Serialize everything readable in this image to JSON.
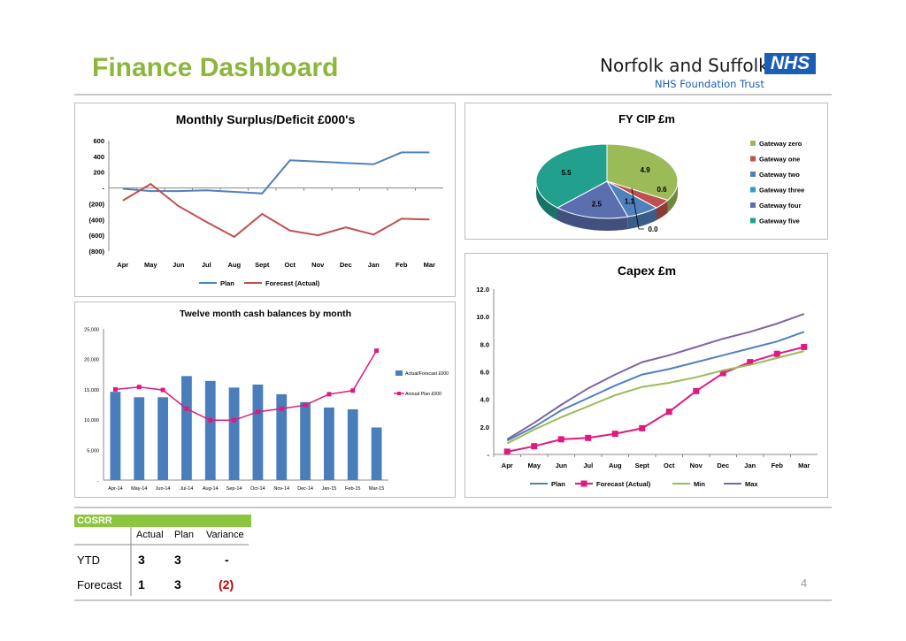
{
  "header": {
    "title": "Finance Dashboard",
    "logo_name": "Norfolk and Suffolk",
    "logo_box": "NHS",
    "logo_sub": "NHS Foundation Trust"
  },
  "colors": {
    "title_green": "#8cb63c",
    "nhs_blue": "#1b5eb8",
    "plan_blue": "#4f81bd",
    "forecast_red": "#c0504d",
    "min_green": "#9bbb59",
    "max_purple": "#8064a2",
    "pink": "#e0197e",
    "cosrr_green": "#8cc63f",
    "variance_red": "#c00000"
  },
  "cosrr": {
    "title": "COSRR",
    "columns": [
      "Actual",
      "Plan",
      "Variance"
    ],
    "rows": [
      {
        "label": "YTD",
        "actual": "3",
        "plan": "3",
        "variance": "-"
      },
      {
        "label": "Forecast",
        "actual": "1",
        "plan": "3",
        "variance": "(2)"
      }
    ]
  },
  "page_number": "4",
  "chart_data": [
    {
      "id": "surplus",
      "type": "line",
      "title": "Monthly Surplus/Deficit £000's",
      "categories": [
        "Apr",
        "May",
        "Jun",
        "Jul",
        "Aug",
        "Sept",
        "Oct",
        "Nov",
        "Dec",
        "Jan",
        "Feb",
        "Mar"
      ],
      "series": [
        {
          "name": "Plan",
          "color": "#4f81bd",
          "values": [
            -10,
            -40,
            -40,
            -30,
            -50,
            -70,
            350,
            335,
            315,
            300,
            450,
            450
          ]
        },
        {
          "name": "Forecast (Actual)",
          "color": "#c0504d",
          "values": [
            -160,
            50,
            -230,
            -430,
            -620,
            -330,
            -540,
            -600,
            -500,
            -590,
            -390,
            -400
          ]
        }
      ],
      "yticks": [
        600,
        400,
        200,
        0,
        -200,
        -400,
        -600,
        -800
      ],
      "ytick_labels": [
        "600",
        "400",
        "200",
        "-",
        "(200)",
        "(400)",
        "(600)",
        "(800)"
      ],
      "ylim": [
        -800,
        600
      ],
      "legend": "bottom"
    },
    {
      "id": "cip",
      "type": "pie",
      "title": "FY CIP £m",
      "slices": [
        {
          "name": "Gateway zero",
          "value": 4.9,
          "label": "4.9",
          "color": "#9bbb59"
        },
        {
          "name": "Gateway one",
          "value": 0.6,
          "label": "0.6",
          "color": "#c0504d"
        },
        {
          "name": "Gateway two",
          "value": 1.1,
          "label": "1.1",
          "color": "#4f81bd"
        },
        {
          "name": "Gateway three",
          "value": 0.0,
          "label": "0.0",
          "color": "#2ea0c6"
        },
        {
          "name": "Gateway four",
          "value": 2.5,
          "label": "2.5",
          "color": "#5b6fb0"
        },
        {
          "name": "Gateway five",
          "value": 5.5,
          "label": "5.5",
          "color": "#21a08e"
        }
      ],
      "legend": "right"
    },
    {
      "id": "cash",
      "type": "bar",
      "title": "Twelve month cash balances by month",
      "categories": [
        "Apr-14",
        "May-14",
        "Jun-14",
        "Jul-14",
        "Aug-14",
        "Sep-14",
        "Oct-14",
        "Nov-14",
        "Dec-14",
        "Jan-15",
        "Feb-15",
        "Mar-15"
      ],
      "series": [
        {
          "name": "Actual/Forecast £000",
          "kind": "bar",
          "color": "#4a7ebb",
          "values": [
            14600,
            13700,
            13700,
            17200,
            16400,
            15300,
            15800,
            14200,
            12900,
            12000,
            11700,
            8700
          ]
        },
        {
          "name": "Annual Plan £000",
          "kind": "line",
          "color": "#e0197e",
          "values": [
            15000,
            15400,
            14900,
            11800,
            9900,
            9900,
            11300,
            11800,
            12400,
            14200,
            14800,
            21400
          ]
        }
      ],
      "yticks": [
        25000,
        20000,
        15000,
        10000,
        5000,
        0
      ],
      "ytick_labels": [
        "25,000",
        "20,000",
        "15,000",
        "10,000",
        "5,000",
        "-"
      ],
      "ylim": [
        0,
        25000
      ],
      "legend": "right"
    },
    {
      "id": "capex",
      "type": "line",
      "title": "Capex £m",
      "categories": [
        "Apr",
        "May",
        "Jun",
        "Jul",
        "Aug",
        "Sept",
        "Oct",
        "Nov",
        "Dec",
        "Jan",
        "Feb",
        "Mar"
      ],
      "series": [
        {
          "name": "Plan",
          "color": "#4f81bd",
          "values": [
            1.0,
            2.0,
            3.2,
            4.1,
            5.0,
            5.8,
            6.2,
            6.7,
            7.2,
            7.7,
            8.2,
            8.9
          ]
        },
        {
          "name": "Forecast (Actual)",
          "color": "#e0197e",
          "marker": "square",
          "values": [
            0.2,
            0.6,
            1.1,
            1.2,
            1.5,
            1.9,
            3.1,
            4.6,
            5.9,
            6.7,
            7.3,
            7.8
          ]
        },
        {
          "name": "Min",
          "color": "#9bbb59",
          "values": [
            0.8,
            1.8,
            2.7,
            3.5,
            4.3,
            4.9,
            5.2,
            5.6,
            6.1,
            6.5,
            7.0,
            7.5
          ]
        },
        {
          "name": "Max",
          "color": "#8064a2",
          "values": [
            1.1,
            2.3,
            3.6,
            4.8,
            5.8,
            6.7,
            7.2,
            7.8,
            8.4,
            8.9,
            9.5,
            10.2
          ]
        }
      ],
      "yticks": [
        12.0,
        10.0,
        8.0,
        6.0,
        4.0,
        2.0,
        0
      ],
      "ytick_labels": [
        "12.0",
        "10.0",
        "8.0",
        "6.0",
        "4.0",
        "2.0",
        "-"
      ],
      "ylim": [
        0,
        12
      ],
      "legend": "bottom"
    }
  ]
}
